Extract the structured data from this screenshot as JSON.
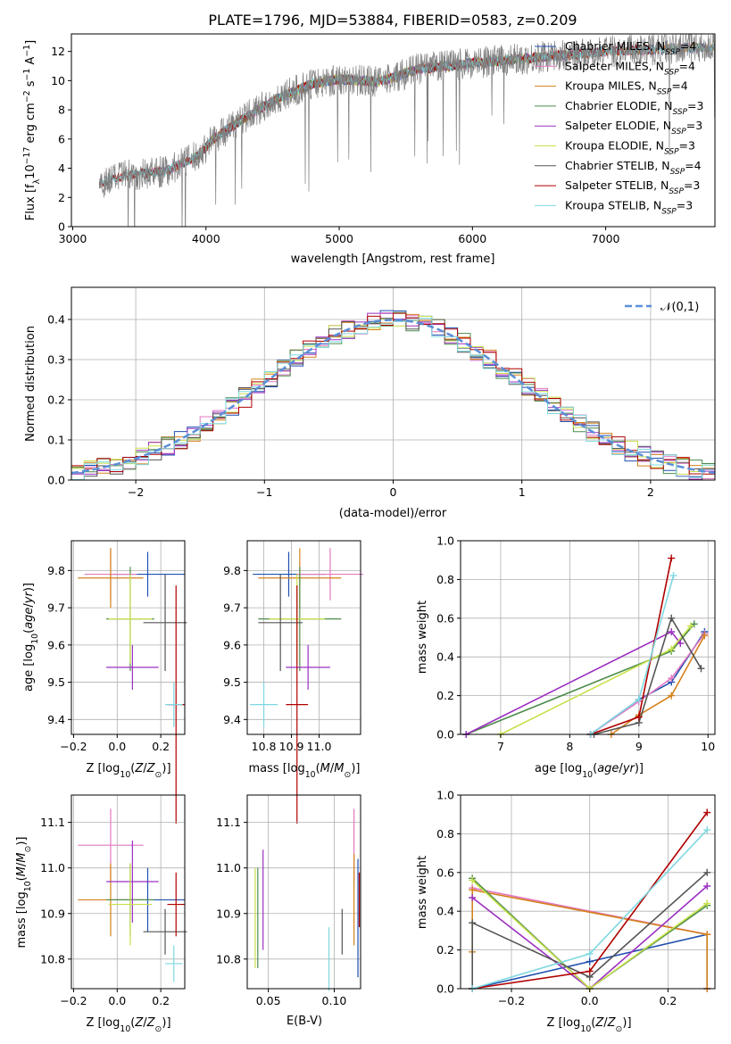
{
  "title": "PLATE=1796, MJD=53884, FIBERID=0583, z=0.209",
  "colors": {
    "Chabrier MILES": "#1f4fb0",
    "Salpeter MILES": "#e377c2",
    "Kroupa MILES": "#d4811b",
    "Chabrier ELODIE": "#4c8c4a",
    "Salpeter ELODIE": "#9b30c0",
    "Kroupa ELODIE": "#c8e04a",
    "Chabrier STELIB": "#555555",
    "Salpeter STELIB": "#b00000",
    "Kroupa STELIB": "#7fd8e0",
    "data": "#808080",
    "normal": "#5b8fd8",
    "grid": "#b0b0b0"
  },
  "legend": [
    "Chabrier MILES, N_SSP=4",
    "Salpeter MILES, N_SSP=4",
    "Kroupa MILES, N_SSP=4",
    "Chabrier ELODIE, N_SSP=3",
    "Salpeter ELODIE, N_SSP=3",
    "Kroupa ELODIE, N_SSP=3",
    "Chabrier STELIB, N_SSP=4",
    "Salpeter STELIB, N_SSP=3",
    "Kroupa STELIB, N_SSP=3"
  ],
  "chart_data": [
    {
      "type": "line",
      "title": "PLATE=1796, MJD=53884, FIBERID=0583, z=0.209",
      "xlabel": "wavelength [Angstrom, rest frame]",
      "ylabel": "Flux [f_λ 10^-17 erg cm^-2 s^-1 A^-1]",
      "xlim": [
        2990,
        7820
      ],
      "ylim": [
        0,
        13.2
      ],
      "xticks": [
        3000,
        4000,
        5000,
        6000,
        7000
      ],
      "yticks": [
        0,
        2,
        4,
        6,
        8,
        10,
        12
      ],
      "continuum": [
        [
          3200,
          3.0
        ],
        [
          3400,
          3.5
        ],
        [
          3700,
          3.8
        ],
        [
          3950,
          4.9
        ],
        [
          4050,
          6.0
        ],
        [
          4300,
          7.5
        ],
        [
          4500,
          8.6
        ],
        [
          4800,
          9.8
        ],
        [
          5000,
          10.1
        ],
        [
          5300,
          9.9
        ],
        [
          5600,
          10.8
        ],
        [
          6000,
          11.2
        ],
        [
          6500,
          11.6
        ],
        [
          7000,
          12.0
        ],
        [
          7500,
          12.2
        ],
        [
          7800,
          12.3
        ]
      ],
      "grid": false
    },
    {
      "type": "histogram",
      "xlabel": "(data-model)/error",
      "ylabel": "Normed distribution",
      "xlim": [
        -2.5,
        2.5
      ],
      "ylim": [
        0,
        0.48
      ],
      "xticks": [
        -2,
        -1,
        0,
        1,
        2
      ],
      "yticks": [
        0.0,
        0.1,
        0.2,
        0.3,
        0.4
      ],
      "bin_width": 0.1,
      "reference_curve": "N(0,1)",
      "legend_label": "𝒩(0,1)",
      "grid": true
    },
    {
      "type": "scatter",
      "xlabel": "Z [log10(Z/Z⊙)]",
      "ylabel": "age  [log10(age/yr)]",
      "xlim": [
        -0.21,
        0.31
      ],
      "ylim": [
        9.36,
        9.88
      ],
      "xticks": [
        -0.2,
        0.0,
        0.2
      ],
      "yticks": [
        9.4,
        9.5,
        9.6,
        9.7,
        9.8
      ],
      "points": [
        {
          "model": "Chabrier MILES",
          "x": 0.14,
          "y": 9.79,
          "xerr": 0.17,
          "yerr": 0.06
        },
        {
          "model": "Salpeter MILES",
          "x": -0.03,
          "y": 9.79,
          "xerr": 0.12,
          "yerr": 0.07
        },
        {
          "model": "Kroupa MILES",
          "x": -0.03,
          "y": 9.78,
          "xerr": 0.15,
          "yerr": 0.08
        },
        {
          "model": "Chabrier ELODIE",
          "x": 0.06,
          "y": 9.67,
          "xerr": 0.11,
          "yerr": 0.14
        },
        {
          "model": "Salpeter ELODIE",
          "x": 0.07,
          "y": 9.54,
          "xerr": 0.12,
          "yerr": 0.06
        },
        {
          "model": "Kroupa ELODIE",
          "x": 0.06,
          "y": 9.67,
          "xerr": 0.1,
          "yerr": 0.12
        },
        {
          "model": "Chabrier STELIB",
          "x": 0.22,
          "y": 9.66,
          "xerr": 0.1,
          "yerr": 0.13
        },
        {
          "model": "Salpeter STELIB",
          "x": 0.27,
          "y": 9.44,
          "xerr": 0.04,
          "yerr": 0.32
        },
        {
          "model": "Kroupa STELIB",
          "x": 0.26,
          "y": 9.44,
          "xerr": 0.04,
          "yerr": 0.06
        }
      ]
    },
    {
      "type": "scatter",
      "xlabel": "mass [log10(M/M⊙)]",
      "ylabel": "",
      "xlim": [
        10.74,
        11.15
      ],
      "ylim": [
        9.36,
        9.88
      ],
      "xticks": [
        10.8,
        10.9,
        11.0
      ],
      "yticks": [
        9.4,
        9.5,
        9.6,
        9.7,
        9.8
      ],
      "points": [
        {
          "model": "Chabrier MILES",
          "x": 10.89,
          "y": 9.79,
          "xerr": 0.13,
          "yerr": 0.06
        },
        {
          "model": "Salpeter MILES",
          "x": 11.04,
          "y": 9.79,
          "xerr": 0.12,
          "yerr": 0.07
        },
        {
          "model": "Kroupa MILES",
          "x": 10.93,
          "y": 9.78,
          "xerr": 0.15,
          "yerr": 0.08
        },
        {
          "model": "Chabrier ELODIE",
          "x": 10.93,
          "y": 9.67,
          "xerr": 0.15,
          "yerr": 0.14
        },
        {
          "model": "Salpeter ELODIE",
          "x": 10.96,
          "y": 9.54,
          "xerr": 0.08,
          "yerr": 0.06
        },
        {
          "model": "Kroupa ELODIE",
          "x": 10.92,
          "y": 9.67,
          "xerr": 0.1,
          "yerr": 0.12
        },
        {
          "model": "Chabrier STELIB",
          "x": 10.86,
          "y": 9.66,
          "xerr": 0.08,
          "yerr": 0.13
        },
        {
          "model": "Salpeter STELIB",
          "x": 10.92,
          "y": 9.44,
          "xerr": 0.04,
          "yerr": 0.32
        },
        {
          "model": "Kroupa STELIB",
          "x": 10.8,
          "y": 9.44,
          "xerr": 0.05,
          "yerr": 0.06
        }
      ]
    },
    {
      "type": "line",
      "xlabel": "age  [log10(age/yr)]",
      "ylabel": "mass weight",
      "xlim": [
        6.42,
        10.1
      ],
      "ylim": [
        0,
        1.0
      ],
      "xticks": [
        7,
        8,
        9,
        10
      ],
      "yticks": [
        0.0,
        0.2,
        0.4,
        0.6,
        0.8,
        1.0
      ],
      "series": [
        {
          "model": "Chabrier MILES",
          "x": [
            8.3,
            9.0,
            9.47,
            9.95
          ],
          "y": [
            0.0,
            0.18,
            0.27,
            0.53
          ]
        },
        {
          "model": "Salpeter MILES",
          "x": [
            8.3,
            9.0,
            9.47,
            9.95
          ],
          "y": [
            0.0,
            0.17,
            0.29,
            0.52
          ]
        },
        {
          "model": "Kroupa MILES",
          "x": [
            8.6,
            9.0,
            9.47,
            9.95
          ],
          "y": [
            0.0,
            0.1,
            0.2,
            0.51
          ]
        },
        {
          "model": "Chabrier ELODIE",
          "x": [
            6.5,
            9.47,
            9.8
          ],
          "y": [
            0.0,
            0.43,
            0.57
          ]
        },
        {
          "model": "Salpeter ELODIE",
          "x": [
            6.5,
            9.47,
            9.6
          ],
          "y": [
            0.0,
            0.53,
            0.47
          ]
        },
        {
          "model": "Kroupa ELODIE",
          "x": [
            7.0,
            9.47,
            9.75
          ],
          "y": [
            0.0,
            0.44,
            0.56
          ]
        },
        {
          "model": "Chabrier STELIB",
          "x": [
            8.35,
            9.0,
            9.47,
            9.9
          ],
          "y": [
            0.0,
            0.06,
            0.6,
            0.34
          ]
        },
        {
          "model": "Salpeter STELIB",
          "x": [
            8.3,
            9.0,
            9.47
          ],
          "y": [
            0.0,
            0.09,
            0.91
          ]
        },
        {
          "model": "Kroupa STELIB",
          "x": [
            8.3,
            9.0,
            9.5
          ],
          "y": [
            0.0,
            0.18,
            0.82
          ]
        }
      ]
    },
    {
      "type": "scatter",
      "xlabel": "Z [log10(Z/Z⊙)]",
      "ylabel": "mass [log10(M/M⊙)]",
      "xlim": [
        -0.21,
        0.31
      ],
      "ylim": [
        10.735,
        11.16
      ],
      "xticks": [
        -0.2,
        0.0,
        0.2
      ],
      "yticks": [
        10.8,
        10.9,
        11.0,
        11.1
      ],
      "points": [
        {
          "model": "Chabrier MILES",
          "x": 0.14,
          "y": 10.93,
          "xerr": 0.17,
          "yerr": 0.07
        },
        {
          "model": "Salpeter MILES",
          "x": -0.03,
          "y": 11.05,
          "xerr": 0.15,
          "yerr": 0.08
        },
        {
          "model": "Kroupa MILES",
          "x": -0.03,
          "y": 10.93,
          "xerr": 0.15,
          "yerr": 0.08
        },
        {
          "model": "Chabrier ELODIE",
          "x": 0.06,
          "y": 10.93,
          "xerr": 0.11,
          "yerr": 0.08
        },
        {
          "model": "Salpeter ELODIE",
          "x": 0.07,
          "y": 10.97,
          "xerr": 0.12,
          "yerr": 0.09
        },
        {
          "model": "Kroupa ELODIE",
          "x": 0.06,
          "y": 10.92,
          "xerr": 0.1,
          "yerr": 0.09
        },
        {
          "model": "Chabrier STELIB",
          "x": 0.22,
          "y": 10.86,
          "xerr": 0.1,
          "yerr": 0.05
        },
        {
          "model": "Salpeter STELIB",
          "x": 0.27,
          "y": 10.92,
          "xerr": 0.04,
          "yerr": 0.07
        },
        {
          "model": "Kroupa STELIB",
          "x": 0.26,
          "y": 10.79,
          "xerr": 0.04,
          "yerr": 0.04
        }
      ]
    },
    {
      "type": "scatter",
      "xlabel": "E(B-V)",
      "ylabel": "",
      "xlim": [
        0.034,
        0.12
      ],
      "ylim": [
        10.735,
        11.16
      ],
      "xticks": [
        0.05,
        0.1
      ],
      "yticks": [
        10.8,
        10.9,
        11.0,
        11.1
      ],
      "points": [
        {
          "model": "Chabrier MILES",
          "x": 0.118,
          "y": 10.89,
          "xerr": 0,
          "yerr": 0.13
        },
        {
          "model": "Salpeter MILES",
          "x": 0.115,
          "y": 11.05,
          "xerr": 0,
          "yerr": 0.08
        },
        {
          "model": "Kroupa MILES",
          "x": 0.115,
          "y": 10.93,
          "xerr": 0,
          "yerr": 0.1
        },
        {
          "model": "Chabrier ELODIE",
          "x": 0.042,
          "y": 10.89,
          "xerr": 0,
          "yerr": 0.11
        },
        {
          "model": "Salpeter ELODIE",
          "x": 0.046,
          "y": 10.93,
          "xerr": 0,
          "yerr": 0.11
        },
        {
          "model": "Kroupa ELODIE",
          "x": 0.04,
          "y": 10.89,
          "xerr": 0,
          "yerr": 0.11
        },
        {
          "model": "Chabrier STELIB",
          "x": 0.106,
          "y": 10.86,
          "xerr": 0,
          "yerr": 0.05
        },
        {
          "model": "Salpeter STELIB",
          "x": 0.119,
          "y": 10.93,
          "xerr": 0,
          "yerr": 0.06
        },
        {
          "model": "Kroupa STELIB",
          "x": 0.096,
          "y": 10.8,
          "xerr": 0,
          "yerr": 0.07
        }
      ]
    },
    {
      "type": "line",
      "xlabel": "Z [log10(Z/Z⊙)]",
      "ylabel": "mass weight",
      "xlim": [
        -0.33,
        0.32
      ],
      "ylim": [
        0,
        1.0
      ],
      "xticks": [
        -0.2,
        0.0,
        0.2
      ],
      "yticks": [
        0.0,
        0.2,
        0.4,
        0.6,
        0.8,
        1.0
      ],
      "series": [
        {
          "model": "Chabrier MILES",
          "x": [
            -0.3,
            0.0,
            0.3
          ],
          "y": [
            0.0,
            0.14,
            0.28
          ]
        },
        {
          "model": "Salpeter MILES",
          "x": [
            -0.3,
            0.3,
            0.3
          ],
          "y": [
            0.52,
            0.28,
            0.0
          ]
        },
        {
          "model": "Kroupa MILES",
          "x": [
            -0.3,
            -0.3,
            0.3,
            0.3
          ],
          "y": [
            0.19,
            0.51,
            0.28,
            0.0
          ]
        },
        {
          "model": "Chabrier ELODIE",
          "x": [
            -0.3,
            0.0,
            0.3
          ],
          "y": [
            0.57,
            0.0,
            0.43
          ]
        },
        {
          "model": "Salpeter ELODIE",
          "x": [
            -0.3,
            0.0,
            0.3
          ],
          "y": [
            0.47,
            0.0,
            0.53
          ]
        },
        {
          "model": "Kroupa ELODIE",
          "x": [
            -0.3,
            0.0,
            0.3
          ],
          "y": [
            0.56,
            0.0,
            0.44
          ]
        },
        {
          "model": "Chabrier STELIB",
          "x": [
            -0.3,
            -0.3,
            0.0,
            0.3
          ],
          "y": [
            0.0,
            0.34,
            0.06,
            0.6
          ]
        },
        {
          "model": "Salpeter STELIB",
          "x": [
            -0.3,
            0.0,
            0.3
          ],
          "y": [
            0.0,
            0.09,
            0.91
          ]
        },
        {
          "model": "Kroupa STELIB",
          "x": [
            -0.3,
            0.0,
            0.3
          ],
          "y": [
            0.0,
            0.18,
            0.82
          ]
        }
      ]
    }
  ]
}
